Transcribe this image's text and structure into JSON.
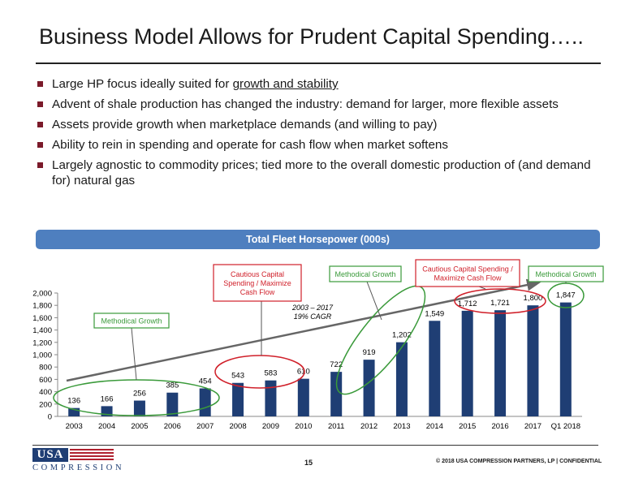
{
  "title": "Business Model Allows for Prudent Capital Spending…..",
  "bullets": {
    "b1_pre": "Large HP focus ideally suited for ",
    "b1_link": "growth and stability",
    "b2": "Advent of shale production has changed the industry: demand for larger, more flexible assets",
    "b3": "Assets provide growth when marketplace demands (and willing to pay)",
    "b4": "Ability to rein in spending and operate for cash flow when market softens",
    "b5": "Largely agnostic to commodity prices; tied more to the overall domestic production of (and demand for) natural gas"
  },
  "chart_header": "Total Fleet Horsepower (000s)",
  "chart_data": {
    "type": "bar",
    "title": "Total Fleet Horsepower (000s)",
    "categories": [
      "2003",
      "2004",
      "2005",
      "2006",
      "2007",
      "2008",
      "2009",
      "2010",
      "2011",
      "2012",
      "2013",
      "2014",
      "2015",
      "2016",
      "2017",
      "Q1 2018"
    ],
    "values": [
      136,
      166,
      256,
      385,
      454,
      543,
      583,
      610,
      722,
      919,
      1202,
      1549,
      1712,
      1721,
      1800,
      1847
    ],
    "value_labels": [
      "136",
      "166",
      "256",
      "385",
      "454",
      "543",
      "583",
      "610",
      "722",
      "919",
      "1,202",
      "1,549",
      "1,712",
      "1,721",
      "1,800",
      "1,847"
    ],
    "ylim": [
      0,
      2000
    ],
    "yticks": [
      "0",
      "200",
      "400",
      "600",
      "800",
      "1,000",
      "1,200",
      "1,400",
      "1,600",
      "1,800",
      "2,000"
    ],
    "bar_color": "#1f3e74",
    "trend_annotation": [
      "2003 – 2017",
      "19% CAGR"
    ],
    "callouts": [
      {
        "text": [
          "Methodical Growth"
        ],
        "color": "#3a9a3a"
      },
      {
        "text": [
          "Cautious Capital",
          "Spending / Maximize",
          "Cash Flow"
        ],
        "color": "#d0202a"
      },
      {
        "text": [
          "Methodical Growth"
        ],
        "color": "#3a9a3a"
      },
      {
        "text": [
          "Cautious Capital Spending /",
          "Maximize Cash Flow"
        ],
        "color": "#d0202a"
      },
      {
        "text": [
          "Methodical Growth"
        ],
        "color": "#3a9a3a"
      }
    ]
  },
  "footer": {
    "page_number": "15",
    "copyright": "© 2018 USA COMPRESSION PARTNERS, LP   |  CONFIDENTIAL",
    "logo_top": "USA",
    "logo_bottom": "COMPRESSION"
  }
}
